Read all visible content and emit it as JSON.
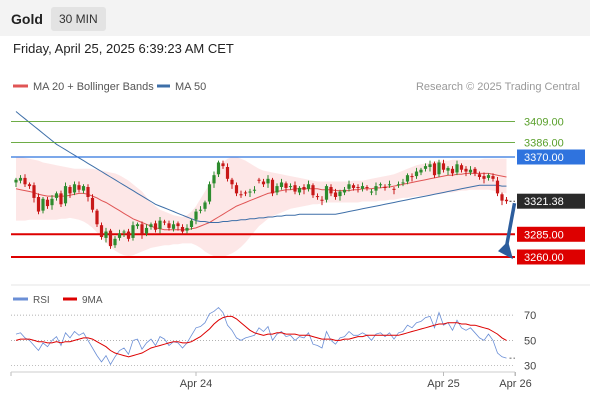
{
  "header": {
    "asset": "Gold",
    "timeframe": "30 MIN",
    "datetime": "Friday, April 25, 2025 6:39:23 AM CET"
  },
  "colors": {
    "up": "#2e8b2e",
    "down": "#c81818",
    "ma20": "#e05555",
    "band_fill": "#fde3e3",
    "ma50": "#3e6fa8",
    "resistance": "#5aa02c",
    "pivot": "#2f73de",
    "support": "#dd0000",
    "arrow": "#2c5d9d",
    "rsi": "#6b8fd6",
    "rsi_ma": "#dd0000"
  },
  "chart_data": [
    {
      "type": "candlestick",
      "legend": [
        "MA 20 + Bollinger Bands",
        "MA 50"
      ],
      "watermark": "Research © 2025 Trading Central",
      "ylim": [
        3249,
        3425
      ],
      "x_ticks": [
        "Apr 24",
        "Apr 25",
        "Apr 26"
      ],
      "x_tick_index": [
        40,
        95,
        111
      ],
      "levels": [
        {
          "label": "3409.00",
          "value": 3409.0,
          "kind": "resistance"
        },
        {
          "label": "3386.00",
          "value": 3386.0,
          "kind": "resistance"
        },
        {
          "label": "3370.00",
          "value": 3370.0,
          "kind": "pivot"
        },
        {
          "label": "3321.38",
          "value": 3321.38,
          "kind": "last"
        },
        {
          "label": "3285.00",
          "value": 3285.0,
          "kind": "support"
        },
        {
          "label": "3260.00",
          "value": 3260.0,
          "kind": "support"
        }
      ],
      "arrow": {
        "from": [
          3321.38
        ],
        "to": [
          3262
        ]
      },
      "close": [
        3345,
        3347,
        3340,
        3338,
        3325,
        3310,
        3324,
        3316,
        3324,
        3330,
        3318,
        3338,
        3330,
        3340,
        3334,
        3338,
        3326,
        3312,
        3296,
        3282,
        3288,
        3272,
        3280,
        3286,
        3288,
        3280,
        3295,
        3296,
        3285,
        3292,
        3296,
        3290,
        3300,
        3298,
        3292,
        3296,
        3294,
        3288,
        3292,
        3300,
        3310,
        3312,
        3320,
        3340,
        3350,
        3364,
        3360,
        3346,
        3340,
        3330,
        3328,
        3330,
        3332,
        3334,
        3344,
        3340,
        3346,
        3330,
        3338,
        3342,
        3336,
        3338,
        3332,
        3336,
        3334,
        3340,
        3328,
        3326,
        3322,
        3338,
        3330,
        3326,
        3332,
        3334,
        3340,
        3336,
        3336,
        3338,
        3336,
        3332,
        3338,
        3340,
        3336,
        3340,
        3334,
        3340,
        3342,
        3350,
        3348,
        3354,
        3356,
        3360,
        3362,
        3350,
        3364,
        3356,
        3358,
        3352,
        3362,
        3356,
        3354,
        3356,
        3352,
        3348,
        3346,
        3350,
        3346,
        3330,
        3322,
        3321.4
      ],
      "open": [
        3342,
        3344,
        3347,
        3340,
        3339,
        3326,
        3311,
        3323,
        3317,
        3325,
        3330,
        3319,
        3337,
        3331,
        3339,
        3333,
        3337,
        3325,
        3311,
        3295,
        3281,
        3289,
        3273,
        3281,
        3287,
        3288,
        3281,
        3294,
        3296,
        3286,
        3293,
        3297,
        3291,
        3299,
        3297,
        3291,
        3297,
        3293,
        3289,
        3293,
        3301,
        3311,
        3313,
        3321,
        3341,
        3351,
        3363,
        3359,
        3345,
        3339,
        3329,
        3331,
        3331,
        3333,
        3345,
        3343,
        3341,
        3345,
        3331,
        3337,
        3341,
        3337,
        3339,
        3331,
        3337,
        3335,
        3339,
        3327,
        3323,
        3323,
        3337,
        3331,
        3327,
        3331,
        3335,
        3339,
        3337,
        3335,
        3337,
        3331,
        3333,
        3339,
        3337,
        3339,
        3335,
        3339,
        3341,
        3343,
        3349,
        3349,
        3353,
        3357,
        3359,
        3363,
        3351,
        3363,
        3355,
        3357,
        3353,
        3361,
        3357,
        3353,
        3357,
        3351,
        3349,
        3347,
        3349,
        3344,
        3329,
        3323
      ],
      "ma20": [
        3335,
        3334,
        3333,
        3332,
        3331,
        3329,
        3328,
        3327,
        3327,
        3327,
        3327,
        3327,
        3328,
        3329,
        3330,
        3330,
        3329,
        3327,
        3325,
        3322,
        3320,
        3317,
        3314,
        3311,
        3308,
        3305,
        3302,
        3300,
        3298,
        3296,
        3294,
        3292,
        3291,
        3290,
        3290,
        3290,
        3290,
        3290,
        3290,
        3291,
        3292,
        3294,
        3296,
        3298,
        3301,
        3304,
        3307,
        3310,
        3313,
        3316,
        3318,
        3320,
        3322,
        3324,
        3326,
        3328,
        3330,
        3331,
        3332,
        3333,
        3334,
        3334,
        3335,
        3335,
        3335,
        3335,
        3335,
        3335,
        3334,
        3334,
        3334,
        3333,
        3333,
        3333,
        3333,
        3334,
        3334,
        3335,
        3335,
        3335,
        3336,
        3336,
        3337,
        3337,
        3338,
        3339,
        3340,
        3341,
        3342,
        3343,
        3344,
        3345,
        3346,
        3347,
        3348,
        3349,
        3350,
        3350,
        3351,
        3351,
        3352,
        3352,
        3352,
        3352,
        3352,
        3352,
        3351,
        3350,
        3349,
        3348
      ],
      "bb_up": [
        3370,
        3370,
        3369,
        3368,
        3367,
        3366,
        3364,
        3363,
        3362,
        3361,
        3360,
        3359,
        3358,
        3357,
        3357,
        3357,
        3357,
        3357,
        3356,
        3355,
        3354,
        3353,
        3352,
        3350,
        3347,
        3344,
        3340,
        3336,
        3332,
        3326,
        3320,
        3316,
        3312,
        3310,
        3308,
        3306,
        3305,
        3304,
        3306,
        3310,
        3316,
        3324,
        3332,
        3340,
        3350,
        3358,
        3364,
        3368,
        3370,
        3370,
        3368,
        3366,
        3363,
        3360,
        3357,
        3355,
        3354,
        3353,
        3352,
        3351,
        3350,
        3349,
        3348,
        3347,
        3346,
        3345,
        3344,
        3343,
        3343,
        3343,
        3343,
        3343,
        3343,
        3343,
        3343,
        3344,
        3344,
        3344,
        3345,
        3346,
        3347,
        3348,
        3349,
        3350,
        3351,
        3353,
        3355,
        3357,
        3359,
        3361,
        3362,
        3363,
        3364,
        3365,
        3366,
        3366,
        3366,
        3367,
        3367,
        3367,
        3367,
        3367,
        3367,
        3367,
        3368,
        3368,
        3368,
        3368,
        3368,
        3368
      ],
      "bb_dn": [
        3300,
        3300,
        3300,
        3301,
        3301,
        3301,
        3301,
        3301,
        3301,
        3301,
        3302,
        3302,
        3303,
        3302,
        3301,
        3299,
        3296,
        3292,
        3287,
        3281,
        3276,
        3271,
        3267,
        3264,
        3262,
        3261,
        3262,
        3264,
        3266,
        3268,
        3270,
        3271,
        3272,
        3273,
        3273,
        3274,
        3274,
        3275,
        3275,
        3275,
        3273,
        3270,
        3266,
        3263,
        3261,
        3260,
        3260,
        3262,
        3264,
        3267,
        3271,
        3276,
        3282,
        3288,
        3294,
        3298,
        3302,
        3305,
        3307,
        3309,
        3311,
        3313,
        3314,
        3315,
        3316,
        3317,
        3318,
        3318,
        3319,
        3320,
        3320,
        3320,
        3320,
        3320,
        3320,
        3320,
        3320,
        3321,
        3321,
        3321,
        3321,
        3322,
        3322,
        3323,
        3323,
        3324,
        3325,
        3325,
        3326,
        3327,
        3327,
        3328,
        3328,
        3329,
        3329,
        3330,
        3331,
        3331,
        3332,
        3333,
        3333,
        3334,
        3334,
        3334,
        3334,
        3334,
        3333,
        3332,
        3331,
        3330
      ],
      "ma50": [
        3420,
        3416,
        3412,
        3408,
        3404,
        3400,
        3396,
        3392,
        3388,
        3384,
        3381,
        3378,
        3375,
        3372,
        3369,
        3366,
        3363,
        3360,
        3357,
        3354,
        3351,
        3348,
        3345,
        3342,
        3339,
        3336,
        3333,
        3330,
        3327,
        3324,
        3321,
        3318,
        3316,
        3314,
        3312,
        3310,
        3308,
        3306,
        3304,
        3302,
        3300,
        3299,
        3299,
        3298,
        3298,
        3298,
        3299,
        3299,
        3300,
        3300,
        3301,
        3301,
        3302,
        3302,
        3303,
        3303,
        3304,
        3304,
        3305,
        3305,
        3306,
        3306,
        3306,
        3307,
        3307,
        3307,
        3307,
        3307,
        3307,
        3307,
        3307,
        3307,
        3308,
        3309,
        3310,
        3311,
        3312,
        3313,
        3314,
        3315,
        3316,
        3317,
        3318,
        3319,
        3320,
        3321,
        3322,
        3323,
        3324,
        3325,
        3326,
        3327,
        3328,
        3329,
        3330,
        3331,
        3332,
        3333,
        3334,
        3335,
        3336,
        3337,
        3338,
        3339,
        3339,
        3339,
        3339,
        3339,
        3338,
        3338
      ]
    },
    {
      "type": "line",
      "legend": [
        "RSI",
        "9MA"
      ],
      "ylim": [
        25,
        78
      ],
      "y_ticks": [
        70,
        50,
        30
      ],
      "y_tick_labels": [
        "70",
        "50",
        "30"
      ],
      "rsi": [
        55,
        56,
        52,
        50,
        46,
        42,
        48,
        45,
        50,
        53,
        46,
        56,
        52,
        57,
        54,
        56,
        50,
        44,
        38,
        33,
        38,
        31,
        37,
        42,
        44,
        39,
        50,
        51,
        43,
        48,
        51,
        46,
        53,
        51,
        46,
        49,
        48,
        44,
        48,
        54,
        60,
        61,
        64,
        71,
        73,
        76,
        72,
        62,
        58,
        52,
        50,
        52,
        53,
        54,
        60,
        57,
        61,
        50,
        55,
        57,
        53,
        54,
        50,
        53,
        52,
        56,
        47,
        46,
        44,
        57,
        50,
        47,
        52,
        53,
        57,
        54,
        54,
        56,
        54,
        50,
        55,
        56,
        53,
        56,
        51,
        56,
        57,
        62,
        60,
        64,
        65,
        68,
        69,
        60,
        72,
        62,
        64,
        58,
        66,
        60,
        58,
        60,
        56,
        52,
        50,
        55,
        50,
        40,
        37,
        36
      ],
      "ma9": [
        50,
        51,
        51,
        51,
        50,
        49,
        49,
        48,
        48,
        49,
        48,
        49,
        49,
        50,
        51,
        52,
        52,
        51,
        49,
        47,
        45,
        42,
        40,
        39,
        38,
        37,
        38,
        39,
        40,
        42,
        44,
        45,
        46,
        47,
        48,
        49,
        49,
        48,
        48,
        49,
        51,
        53,
        56,
        59,
        63,
        66,
        68,
        69,
        69,
        67,
        64,
        61,
        58,
        56,
        55,
        54,
        55,
        55,
        56,
        56,
        55,
        55,
        55,
        54,
        54,
        54,
        53,
        52,
        51,
        51,
        51,
        50,
        50,
        51,
        51,
        52,
        53,
        53,
        54,
        54,
        54,
        54,
        54,
        54,
        54,
        54,
        55,
        56,
        57,
        58,
        59,
        60,
        61,
        62,
        63,
        63,
        64,
        64,
        64,
        63,
        63,
        62,
        62,
        61,
        60,
        59,
        57,
        55,
        52,
        50
      ]
    }
  ]
}
